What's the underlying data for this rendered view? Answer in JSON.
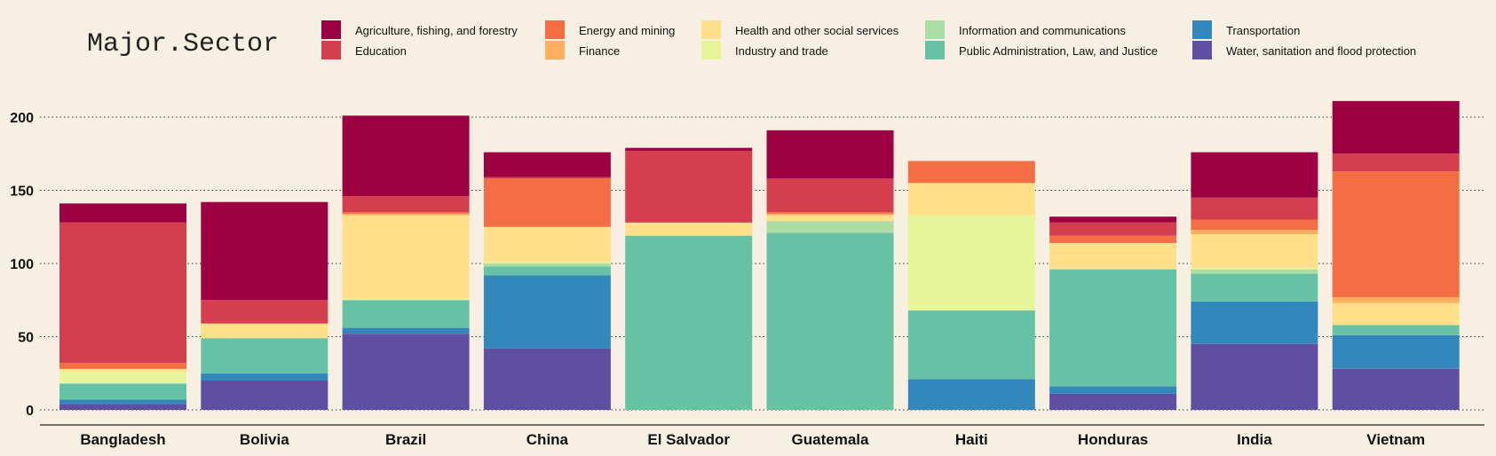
{
  "chart_data": {
    "type": "bar",
    "stacked": true,
    "legend_title": "Major.Sector",
    "legend_position": "top",
    "grid": "horizontal dotted",
    "ylim": [
      0,
      215
    ],
    "yticks": [
      0,
      50,
      100,
      150,
      200
    ],
    "categories": [
      "Bangladesh",
      "Bolivia",
      "Brazil",
      "China",
      "El Salvador",
      "Guatemala",
      "Haiti",
      "Honduras",
      "India",
      "Vietnam"
    ],
    "series": [
      {
        "name": "Water, sanitation and flood protection",
        "color": "#5e4fa2",
        "values": [
          4,
          20,
          52,
          42,
          0,
          0,
          0,
          11,
          45,
          28
        ]
      },
      {
        "name": "Transportation",
        "color": "#3288bd",
        "values": [
          3,
          5,
          4,
          50,
          0,
          0,
          21,
          5,
          29,
          23
        ]
      },
      {
        "name": "Public Administration, Law, and Justice",
        "color": "#66c2a5",
        "values": [
          11,
          24,
          19,
          6,
          119,
          121,
          47,
          80,
          19,
          7
        ]
      },
      {
        "name": "Information and communications",
        "color": "#abdda4",
        "values": [
          0,
          0,
          0,
          2,
          0,
          8,
          0,
          0,
          3,
          0
        ]
      },
      {
        "name": "Industry and trade",
        "color": "#e6f598",
        "values": [
          8,
          0,
          1,
          1,
          0,
          0,
          65,
          0,
          1,
          0
        ]
      },
      {
        "name": "Health and other social services",
        "color": "#fee08b",
        "values": [
          2,
          10,
          57,
          24,
          9,
          4,
          22,
          18,
          23,
          15
        ]
      },
      {
        "name": "Finance",
        "color": "#fdae61",
        "values": [
          0,
          0,
          1,
          0,
          0,
          1,
          0,
          0,
          3,
          4
        ]
      },
      {
        "name": "Energy and mining",
        "color": "#f46d43",
        "values": [
          4,
          0,
          1,
          33,
          0,
          1,
          15,
          5,
          7,
          86
        ]
      },
      {
        "name": "Education",
        "color": "#d53e4f",
        "values": [
          96,
          16,
          11,
          1,
          49,
          23,
          0,
          9,
          15,
          12
        ]
      },
      {
        "name": "Agriculture, fishing, and forestry",
        "color": "#9e0142",
        "values": [
          13,
          67,
          55,
          17,
          2,
          33,
          0,
          4,
          31,
          36
        ]
      }
    ],
    "legend_order": [
      "Agriculture, fishing, and forestry",
      "Education",
      "Energy and mining",
      "Finance",
      "Health and other social services",
      "Industry and trade",
      "Information and communications",
      "Public Administration, Law, and Justice",
      "Transportation",
      "Water, sanitation and flood protection"
    ]
  }
}
